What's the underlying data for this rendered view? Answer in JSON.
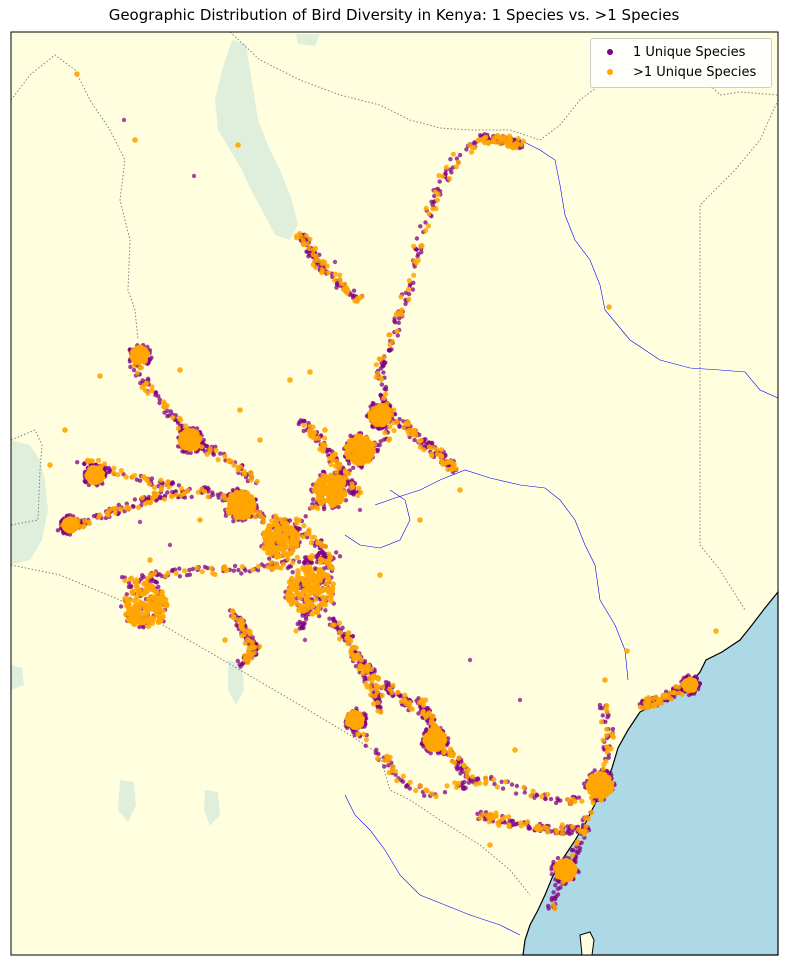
{
  "title": "Geographic Distribution of Bird Diversity in Kenya: 1 Species vs. >1 Species",
  "legend": [
    {
      "label": "1 Unique Species",
      "color": "#800080"
    },
    {
      "label": ">1 Unique Species",
      "color": "#ffa500"
    }
  ],
  "colors": {
    "land": "#ffffe0",
    "ocean": "#add8e6",
    "lakes": "#dfefdc",
    "rivers": "#0000ff",
    "borders": "#808080",
    "coastline": "#000000"
  },
  "chart_data": {
    "type": "scatter",
    "title": "Geographic Distribution of Bird Diversity in Kenya: 1 Species vs. >1 Species",
    "xlabel": "",
    "ylabel": "",
    "legend_position": "top-right",
    "series": [
      {
        "name": "1 Unique Species",
        "color": "#800080"
      },
      {
        "name": ">1 Unique Species",
        "color": "#ffa500"
      }
    ]
  }
}
